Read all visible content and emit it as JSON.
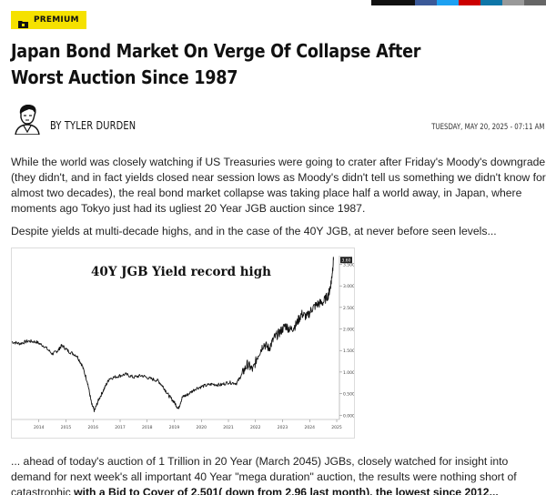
{
  "badge": {
    "label": "PREMIUM"
  },
  "article": {
    "title": "Japan Bond Market On Verge Of Collapse After Worst Auction Since 1987",
    "author": "BY TYLER DURDEN",
    "timestamp": "TUESDAY, MAY 20, 2025 - 07:11 AM",
    "paragraph1": "While the world was closely watching if US Treasuries were going to crater after Friday's Moody's downgrade (they didn't, and in fact yields closed near session lows as Moody's didn't tell us something we didn't know for almost two decades), the real bond market collapse was taking place half a world away, in Japan, where moments ago Tokyo just had its ugliest 20 Year JGB auction since 1987.",
    "paragraph2": "Despite yields at multi-decade highs, and in the case of the 40Y JGB, at never before seen levels...",
    "paragraph3_text": "... ahead of today's auction of 1 Trillion in 20 Year (March 2045) JGBs, closely watched for insight into demand for next week's all important 40 Year \"mega duration\" auction, the results were nothing short of catastrophic ",
    "paragraph3_bold": "with a Bid to Cover of 2.501( down from 2.96 last month), the lowest since 2012..."
  },
  "share_colors": [
    "#111111",
    "#111111",
    "#3b5998",
    "#1da1f2",
    "#cc0000",
    "#0e76a8",
    "#999999",
    "#666666"
  ],
  "chart_data": {
    "type": "line",
    "title": "40Y JGB Yield record high",
    "x_tick_labels": [
      "2014",
      "2015",
      "2016",
      "2017",
      "2018",
      "2019",
      "2020",
      "2021",
      "2022",
      "2023",
      "2024",
      "2025"
    ],
    "y_tick_labels": [
      "3.500",
      "3.000",
      "2.500",
      "2.000",
      "1.500",
      "1.000",
      "0.500",
      "0.000"
    ],
    "last_value_label": "3.60",
    "ylim": [
      -0.1,
      3.7
    ],
    "xlim": [
      2013.5,
      2025.6
    ],
    "series": [
      {
        "color": "#111111",
        "x": [
          2013.5,
          2013.8,
          2014.1,
          2014.4,
          2014.7,
          2015.0,
          2015.2,
          2015.35,
          2015.6,
          2015.9,
          2016.1,
          2016.3,
          2016.45,
          2016.55,
          2016.7,
          2016.9,
          2017.1,
          2017.4,
          2017.7,
          2018.0,
          2018.3,
          2018.6,
          2018.9,
          2019.1,
          2019.3,
          2019.5,
          2019.65,
          2019.8,
          2020.0,
          2020.3,
          2020.6,
          2020.9,
          2021.2,
          2021.5,
          2021.8,
          2022.0,
          2022.2,
          2022.4,
          2022.6,
          2022.8,
          2023.0,
          2023.2,
          2023.4,
          2023.6,
          2023.8,
          2024.0,
          2024.2,
          2024.4,
          2024.6,
          2024.8,
          2025.0,
          2025.2,
          2025.3,
          2025.38
        ],
        "y": [
          1.7,
          1.66,
          1.72,
          1.7,
          1.6,
          1.42,
          1.5,
          1.62,
          1.48,
          1.38,
          1.15,
          0.75,
          0.25,
          0.1,
          0.35,
          0.6,
          0.85,
          0.9,
          0.95,
          0.88,
          0.92,
          0.85,
          0.8,
          0.65,
          0.45,
          0.3,
          0.15,
          0.42,
          0.48,
          0.62,
          0.68,
          0.72,
          0.7,
          0.76,
          0.74,
          0.95,
          1.18,
          1.05,
          1.4,
          1.65,
          1.55,
          1.8,
          1.92,
          2.08,
          1.98,
          2.1,
          2.35,
          2.28,
          2.48,
          2.58,
          2.62,
          2.8,
          3.1,
          3.6
        ]
      }
    ]
  }
}
